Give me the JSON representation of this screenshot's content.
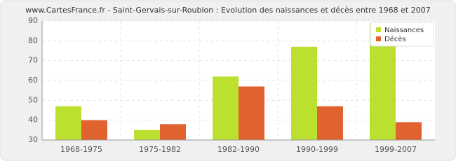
{
  "chart_data": {
    "type": "bar",
    "title": "www.CartesFrance.fr - Saint-Gervais-sur-Roubion : Evolution des naissances et décès entre 1968 et 2007",
    "categories": [
      "1968-1975",
      "1975-1982",
      "1982-1990",
      "1990-1999",
      "1999-2007"
    ],
    "series": [
      {
        "name": "Naissances",
        "color": "#bbe02f",
        "values": [
          47,
          35,
          62,
          77,
          89
        ]
      },
      {
        "name": "Décès",
        "color": "#e0622f",
        "values": [
          40,
          38,
          57,
          47,
          39
        ]
      }
    ],
    "ylim": [
      30,
      90
    ],
    "yticks": [
      30,
      40,
      50,
      60,
      70,
      80,
      90
    ],
    "grid": true,
    "legend": "top-right"
  }
}
